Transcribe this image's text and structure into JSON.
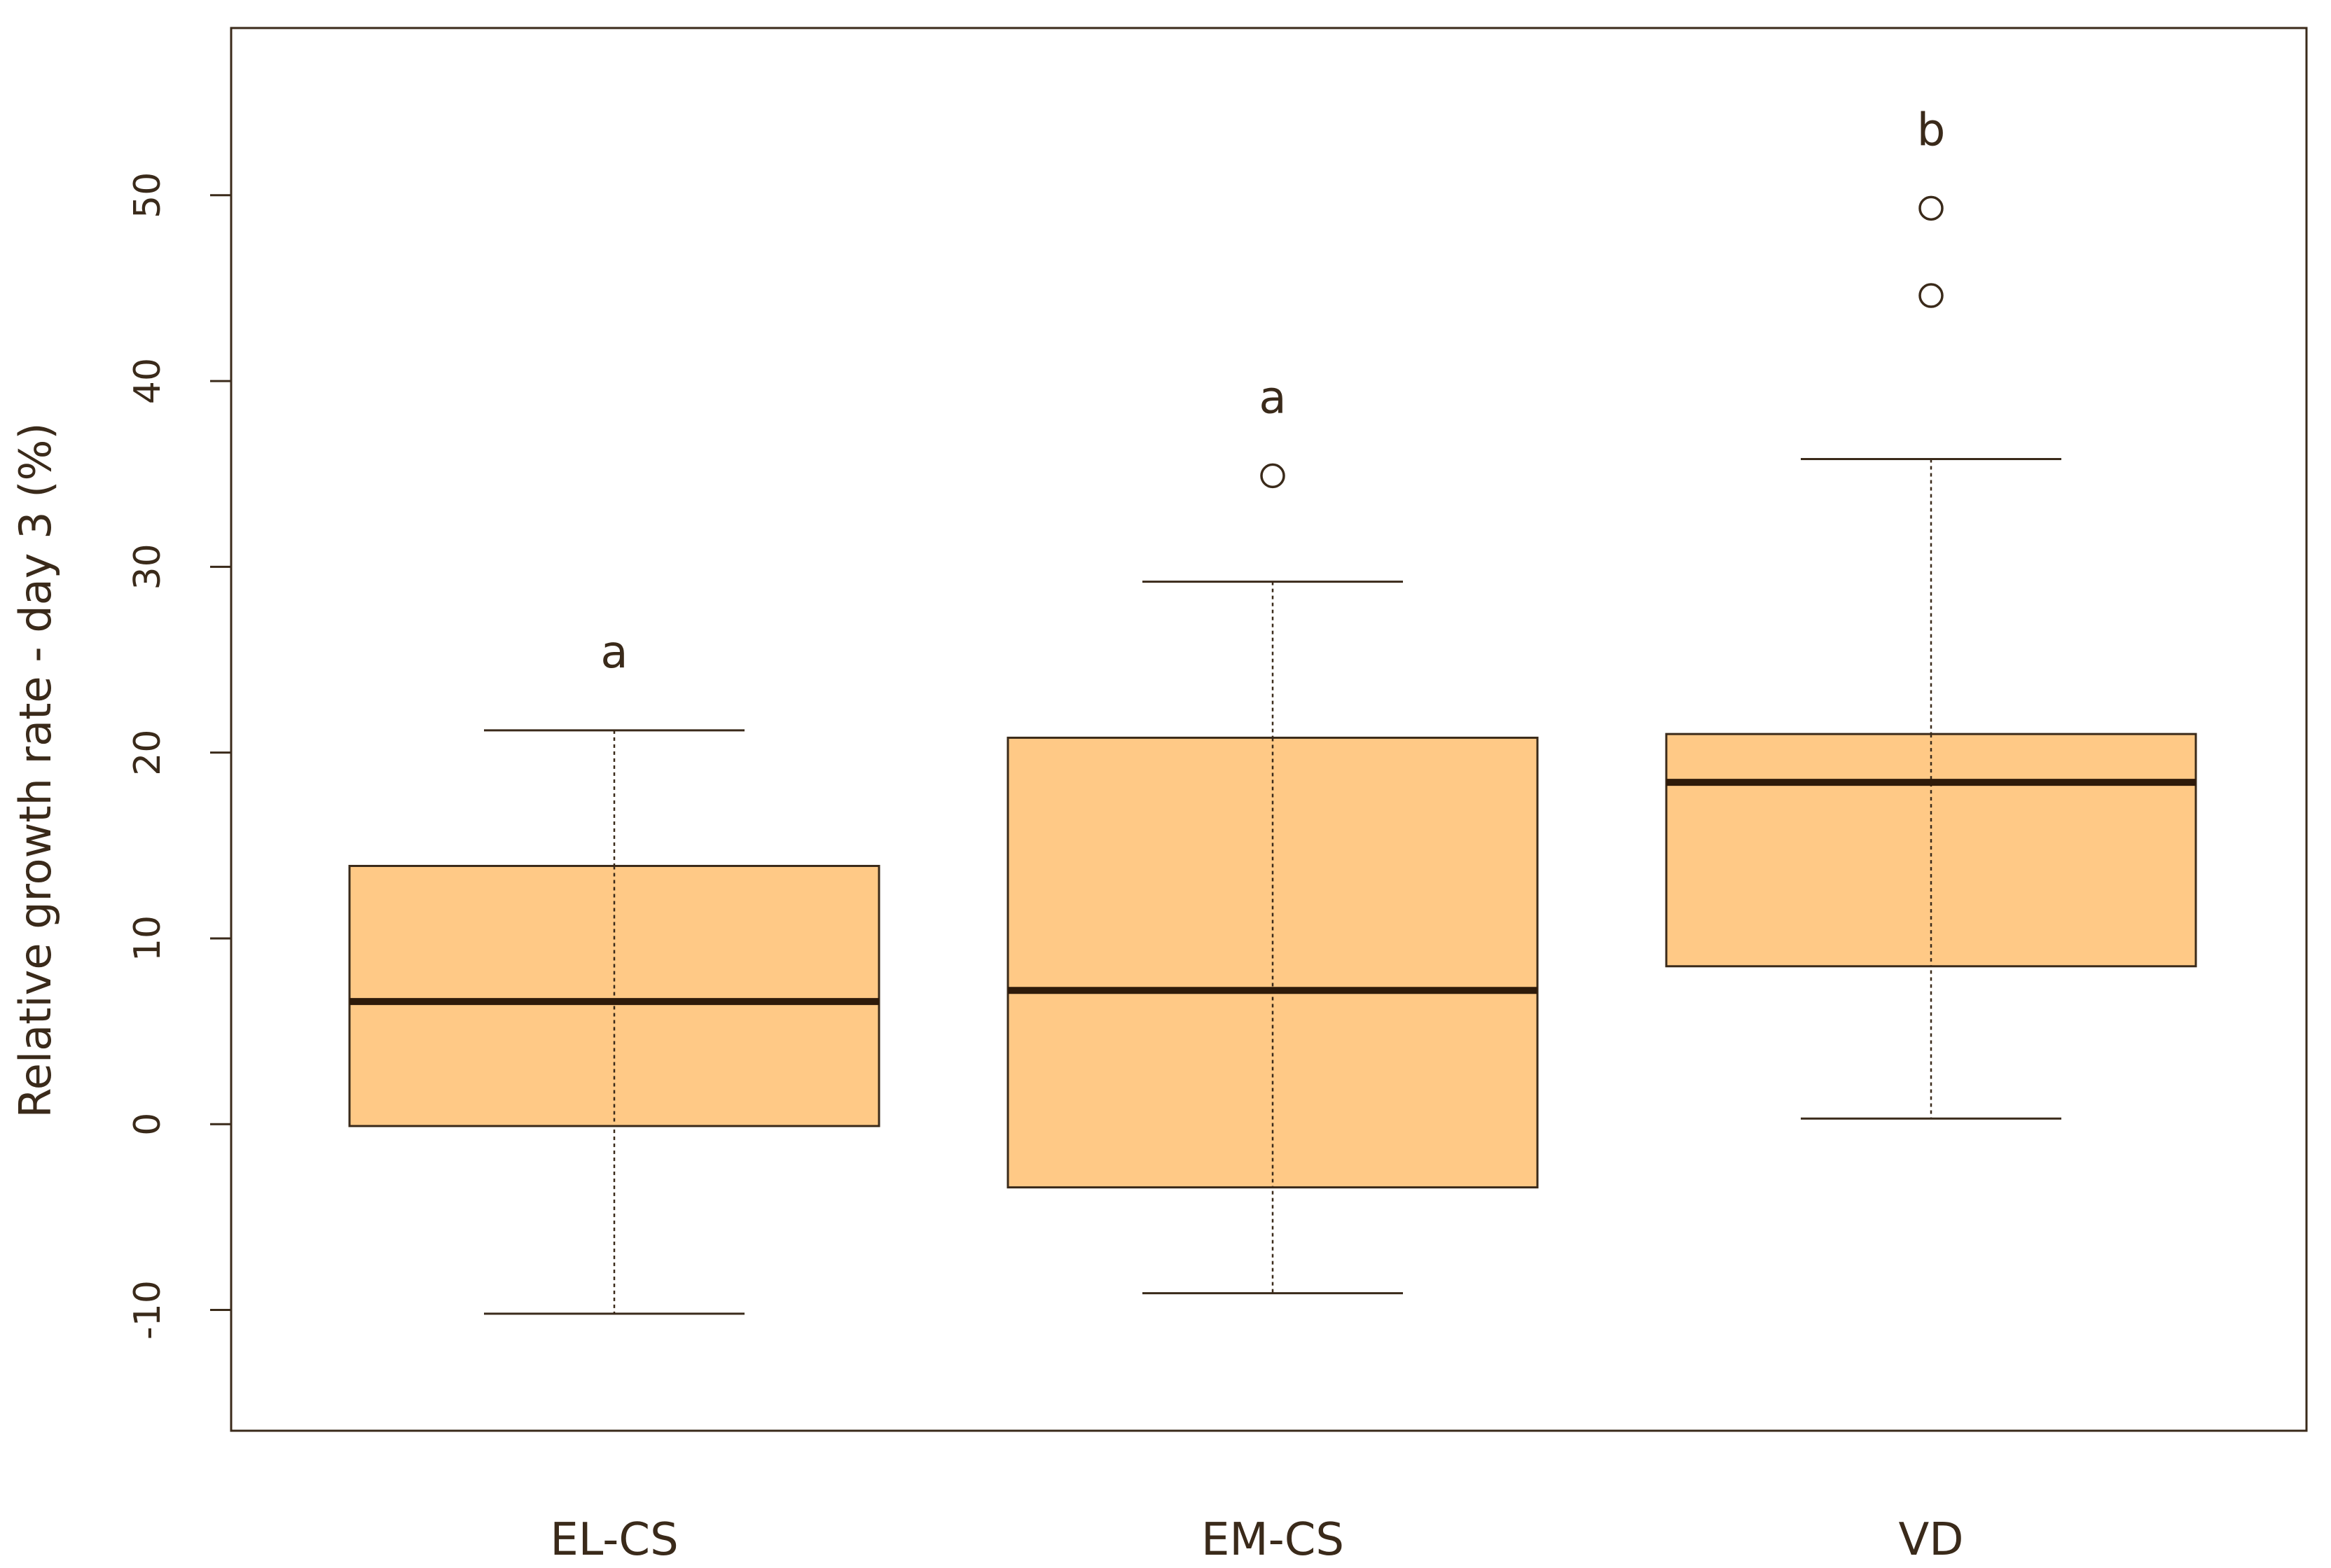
{
  "chart_data": {
    "type": "boxplot",
    "title": "",
    "xlabel": "",
    "ylabel": "Relative growth rate - day 3 (%)",
    "ylim": [
      -16.5,
      59
    ],
    "yticks": [
      -10,
      0,
      10,
      20,
      30,
      40,
      50
    ],
    "ytick_labels": [
      "-10",
      "0",
      "10",
      "20",
      "30",
      "40",
      "50"
    ],
    "grid": false,
    "box_color": "#FFC986",
    "line_color": "#3a2a1a",
    "categories": [
      "EL-CS",
      "EM-CS",
      "VD"
    ],
    "boxes": [
      {
        "name": "EL-CS",
        "whisker_low": -10.2,
        "q1": -0.1,
        "median": 6.6,
        "q3": 13.9,
        "whisker_high": 21.2,
        "outliers": [],
        "letter": "a"
      },
      {
        "name": "EM-CS",
        "whisker_low": -9.1,
        "q1": -3.4,
        "median": 7.2,
        "q3": 20.8,
        "whisker_high": 29.2,
        "outliers": [
          34.9
        ],
        "letter": "a"
      },
      {
        "name": "VD",
        "whisker_low": 0.3,
        "q1": 8.5,
        "median": 18.4,
        "q3": 21.0,
        "whisker_high": 35.8,
        "outliers": [
          44.6,
          49.3
        ],
        "letter": "b"
      }
    ]
  }
}
